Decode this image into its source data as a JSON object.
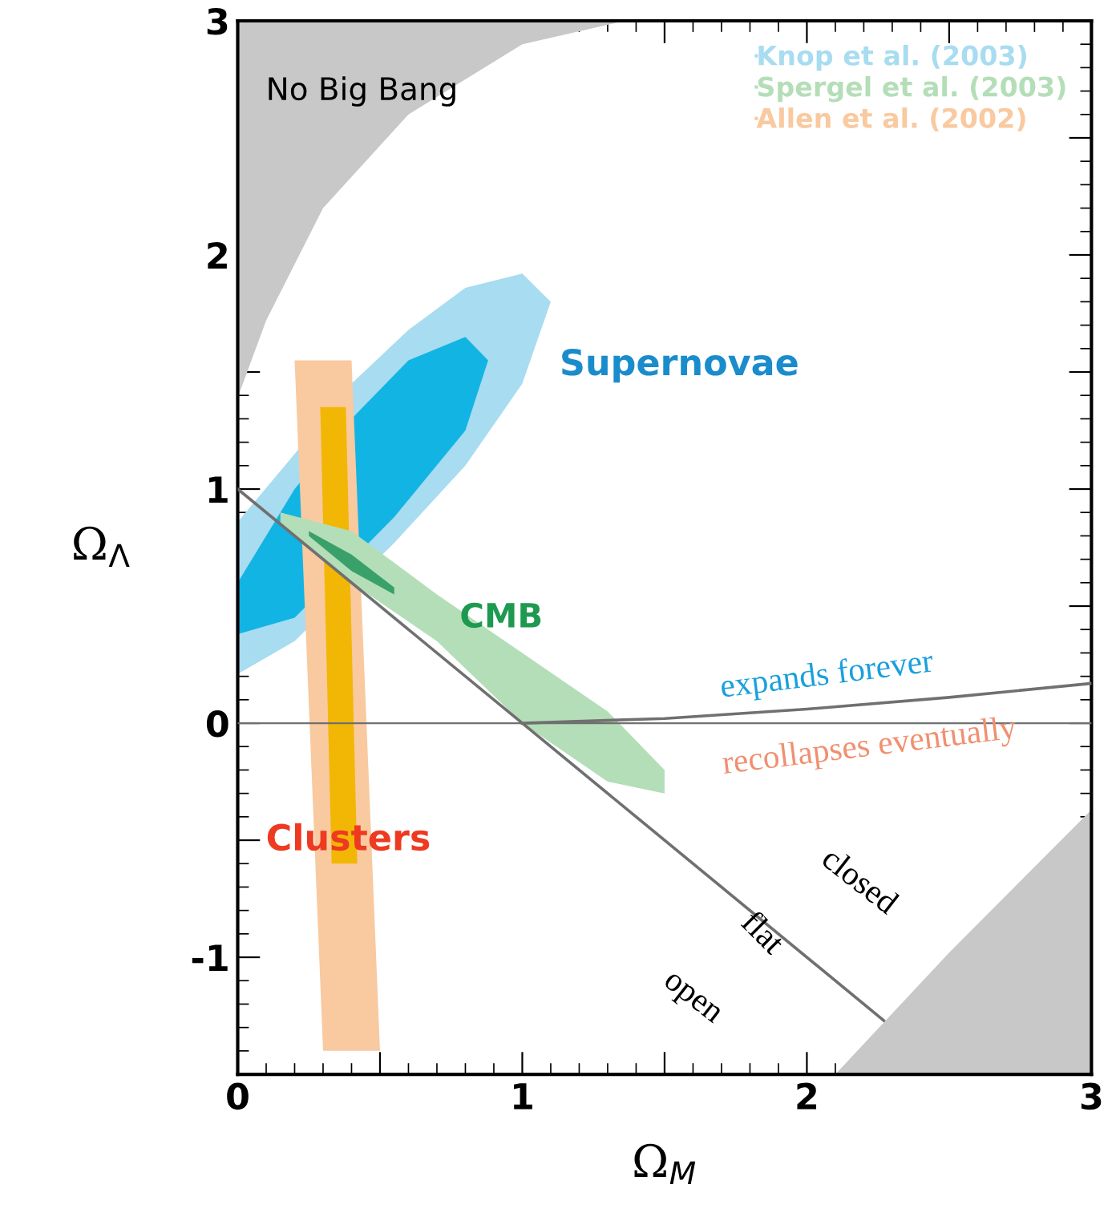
{
  "chart_data": {
    "type": "area",
    "xlabel": "Ω$_{M}$",
    "ylabel": "Ω$_{Λ}$",
    "xlim": [
      0,
      3
    ],
    "ylim": [
      -1.5,
      3
    ],
    "xticks": [
      0,
      {
        "value": 0.5,
        "label": null
      },
      1,
      {
        "value": 1.5,
        "label": null
      },
      2,
      {
        "value": 2.5,
        "label": null
      },
      3
    ],
    "yticks": [
      {
        "value": -1.5,
        "label": null
      },
      {
        "value": -1,
        "label": "-1"
      },
      {
        "value": -0.5,
        "label": null
      },
      0,
      {
        "value": 0.5,
        "label": null
      },
      1,
      {
        "value": 1.5,
        "label": null
      },
      2,
      {
        "value": 2.5,
        "label": null
      },
      3
    ],
    "grid": false,
    "legend": "top right",
    "series": [
      {
        "color": "#c8c8c8",
        "x": [
          0,
          0.1,
          0.3,
          0.6,
          1.0,
          1.36,
          0
        ],
        "values": [
          1.39,
          1.72,
          2.2,
          2.6,
          2.9,
          3,
          3
        ]
      },
      {
        "color": "#c8c8c8",
        "x": [
          2.1,
          2.5,
          3,
          3
        ],
        "values": [
          -1.5,
          -0.98,
          -0.37,
          -1.5
        ]
      },
      {
        "name": "Knop et al. (2003)",
        "color": "#a8dcf0",
        "x": [
          0,
          0.2,
          0.4,
          0.6,
          0.8,
          1.0,
          1.1,
          1.0,
          0.8,
          0.55,
          0.2,
          0
        ],
        "values": [
          0.86,
          1.15,
          1.45,
          1.68,
          1.86,
          1.92,
          1.8,
          1.45,
          1.1,
          0.77,
          0.35,
          0.21
        ]
      },
      {
        "color": "#12b4e4",
        "x": [
          0,
          0.2,
          0.4,
          0.6,
          0.8,
          0.88,
          0.8,
          0.55,
          0.2,
          0
        ],
        "values": [
          0.6,
          1.0,
          1.3,
          1.55,
          1.65,
          1.55,
          1.25,
          0.88,
          0.45,
          0.38
        ]
      },
      {
        "name": "Spergel et al. (2003)",
        "color": "#b4deb8",
        "x": [
          0.15,
          0.4,
          0.7,
          1.0,
          1.3,
          1.5,
          1.5,
          1.3,
          1.0,
          0.7,
          0.4,
          0.15
        ],
        "values": [
          0.9,
          0.82,
          0.55,
          0.3,
          0.05,
          -0.2,
          -0.3,
          -0.25,
          0.0,
          0.35,
          0.6,
          0.85
        ]
      },
      {
        "color": "#3aa06a",
        "x": [
          0.25,
          0.4,
          0.55,
          0.55,
          0.4,
          0.25
        ],
        "values": [
          0.82,
          0.72,
          0.58,
          0.55,
          0.65,
          0.8
        ]
      },
      {
        "name": "Allen et al. (2002)",
        "color": "#f9c9a0",
        "x": [
          0.2,
          0.4,
          0.5,
          0.3
        ],
        "values": [
          1.55,
          1.55,
          -1.4,
          -1.4
        ]
      },
      {
        "color": "#f2b705",
        "x": [
          0.29,
          0.38,
          0.42,
          0.33
        ],
        "values": [
          1.35,
          1.35,
          -0.6,
          -0.6
        ]
      },
      {
        "type": "line",
        "color": "#707070",
        "x": [
          0,
          2.27
        ],
        "values": [
          1,
          -1.27
        ]
      },
      {
        "type": "line",
        "color": "#707070",
        "x": [
          1,
          1.5,
          2,
          2.5,
          3
        ],
        "values": [
          0,
          0.02,
          0.06,
          0.11,
          0.17
        ]
      }
    ],
    "ref_lines": [
      {
        "axis": "y",
        "value": 0,
        "color": "#707070"
      }
    ],
    "annotations": [
      "No Big Bang",
      "Supernovae",
      "CMB",
      "Clusters",
      "expands forever",
      "recollapses eventually",
      "closed",
      "flat",
      "open"
    ]
  }
}
